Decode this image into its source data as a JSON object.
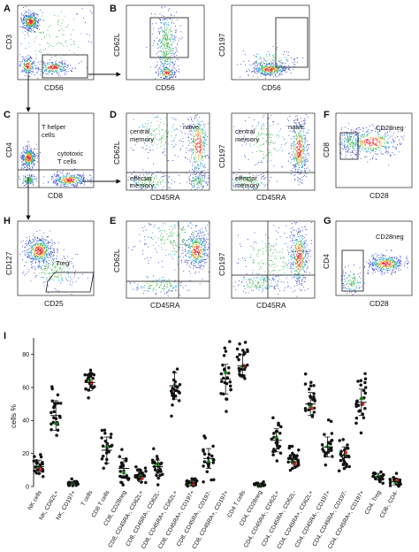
{
  "panels": [
    {
      "id": "A",
      "x_label": "CD56",
      "y_label": "CD3",
      "gates": [
        ""
      ],
      "texts": []
    },
    {
      "id": "B",
      "x_label": "CD56",
      "y_label": "CD62L",
      "gates": [
        ""
      ],
      "texts": []
    },
    {
      "id": "B2",
      "x_label": "CD56",
      "y_label": "CD197",
      "gates": [
        ""
      ],
      "texts": []
    },
    {
      "id": "C",
      "x_label": "CD8",
      "y_label": "CD4",
      "texts": [
        "T helper",
        "cells",
        "cytotoxic",
        "T cells"
      ]
    },
    {
      "id": "D",
      "x_label": "CD45RA",
      "y_label": "CD62L",
      "texts": [
        "central",
        "memory",
        "naive",
        "effector",
        "memory"
      ]
    },
    {
      "id": "D2",
      "x_label": "CD45RA",
      "y_label": "CD197",
      "texts": [
        "central",
        "memory",
        "naive",
        "effector",
        "memory"
      ]
    },
    {
      "id": "F",
      "x_label": "CD28",
      "y_label": "CD8",
      "texts": [
        "CD28neg"
      ]
    },
    {
      "id": "H",
      "x_label": "CD25",
      "y_label": "CD127",
      "texts": [
        "Treg"
      ]
    },
    {
      "id": "E",
      "x_label": "CD45RA",
      "y_label": "CD62L",
      "texts": []
    },
    {
      "id": "E2",
      "x_label": "CD45RA",
      "y_label": "CD197",
      "texts": []
    },
    {
      "id": "G",
      "x_label": "CD28",
      "y_label": "CD4",
      "texts": [
        "CD28neg"
      ]
    }
  ],
  "panel_letters": [
    "A",
    "B",
    "C",
    "D",
    "F",
    "H",
    "E",
    "G",
    "I"
  ],
  "chart_data": {
    "type": "scatter",
    "ylabel": "cells %",
    "ylim": [
      0,
      90
    ],
    "yticks": [
      0,
      20,
      40,
      60,
      80
    ],
    "categories": [
      "NK cells",
      "NK, CD62L+",
      "NK, CD197+",
      "T cells",
      "CD8 T cells",
      "CD8, CD28neg",
      "CD8, CD45RA-, CD62L+",
      "CD8, CD45RA-, CD62L-",
      "CD8, CD45RA+, CD62L+",
      "CD8, CD45RA+, CD197+",
      "CD8, CD45RA-, CD197-",
      "CD8, CD45RA+, CD197+",
      "CD4 T cells",
      "CD4, CD28neg",
      "CD4, CD45RA-, CD62L+",
      "CD4, CD45RA-, CD62L-",
      "CD4, CD45RA+, CD62L+",
      "CD4, CD45RA-, CD197+",
      "CD4, CD45RA-, CD197-",
      "CD4, CD45RA+, CD197+",
      "CD4, Treg",
      "CD8-, CD4-"
    ],
    "medians": [
      12,
      43,
      2,
      63,
      22,
      11,
      6,
      12,
      61,
      2,
      17,
      65,
      73,
      1,
      28,
      15,
      50,
      24,
      19,
      51,
      6,
      3
    ],
    "sd": [
      4,
      9,
      1,
      5,
      8,
      6,
      3,
      4,
      8,
      1.5,
      6,
      9,
      7,
      0.8,
      7,
      4,
      7,
      6,
      5,
      8,
      2,
      2
    ],
    "n_points": 24,
    "highlight_colors": {
      "red": "#d62728",
      "green": "#2ca02c"
    }
  }
}
